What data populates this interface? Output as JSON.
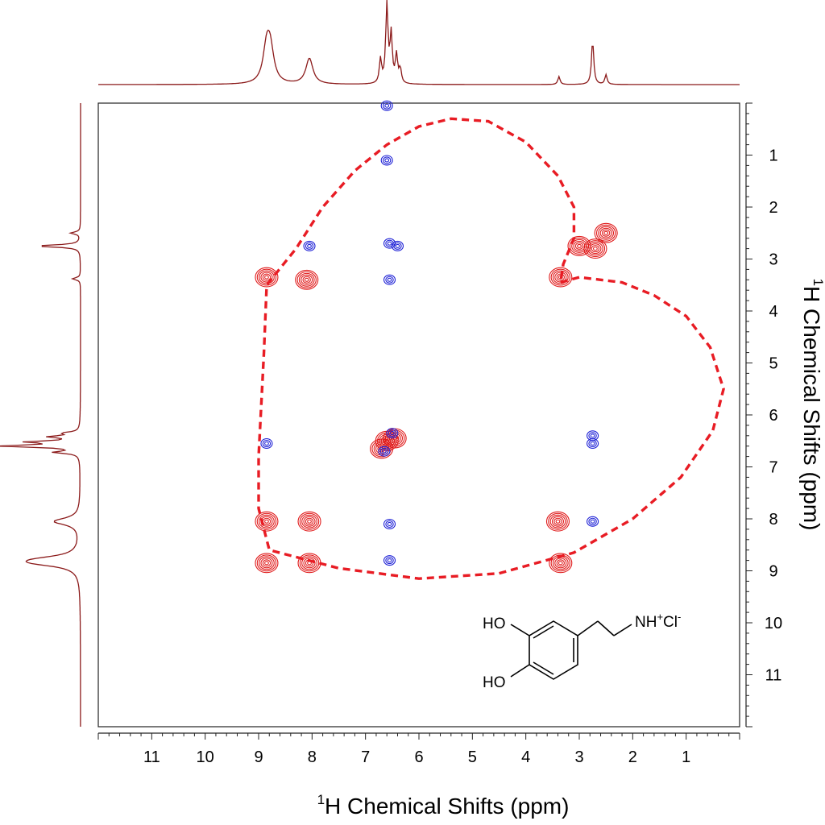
{
  "chart_data": {
    "type": "scatter",
    "x_axis": {
      "label_prefix_superscript": "1",
      "label": "H Chemical Shifts (ppm)",
      "range": [
        12,
        0
      ],
      "tick_labels": [
        "11",
        "10",
        "9",
        "8",
        "7",
        "6",
        "5",
        "4",
        "3",
        "2",
        "1"
      ]
    },
    "y_axis": {
      "label_prefix_superscript": "1",
      "label": "H Chemical Shifts (ppm)",
      "range": [
        0,
        12
      ],
      "position": "right",
      "tick_labels": [
        "1",
        "2",
        "3",
        "4",
        "5",
        "6",
        "7",
        "8",
        "9",
        "10",
        "11"
      ]
    },
    "grid": false,
    "colors": {
      "positive": "#e01b1b",
      "negative": "#1f22d6",
      "projection": "#8b1a1a",
      "heart": "#e81c24"
    },
    "series": [
      {
        "name": "",
        "color": "#e01b1b",
        "points": [
          [
            8.85,
            3.35
          ],
          [
            8.85,
            8.05
          ],
          [
            8.85,
            8.85
          ],
          [
            8.05,
            8.05
          ],
          [
            8.05,
            8.85
          ],
          [
            8.1,
            3.4
          ],
          [
            6.6,
            6.5
          ],
          [
            6.45,
            6.45
          ],
          [
            6.7,
            6.65
          ],
          [
            3.35,
            3.35
          ],
          [
            3.35,
            8.85
          ],
          [
            3.4,
            8.05
          ],
          [
            2.7,
            2.8
          ],
          [
            2.5,
            2.5
          ],
          [
            3.0,
            2.75
          ]
        ]
      },
      {
        "name": "",
        "color": "#1f22d6",
        "points": [
          [
            8.05,
            2.75
          ],
          [
            6.55,
            2.7
          ],
          [
            6.4,
            2.75
          ],
          [
            6.55,
            3.4
          ],
          [
            6.6,
            1.1
          ],
          [
            6.6,
            0.05
          ],
          [
            8.85,
            6.55
          ],
          [
            6.5,
            6.35
          ],
          [
            6.65,
            6.7
          ],
          [
            6.55,
            8.1
          ],
          [
            6.55,
            8.8
          ],
          [
            2.75,
            6.55
          ],
          [
            2.75,
            8.05
          ],
          [
            2.75,
            6.4
          ]
        ]
      }
    ],
    "projection_peaks_ppm": [
      8.85,
      8.78,
      8.05,
      6.72,
      6.6,
      6.52,
      6.42,
      6.35,
      3.38,
      2.75,
      2.5
    ],
    "projection_heights": [
      0.42,
      0.38,
      0.32,
      0.3,
      1.0,
      0.6,
      0.35,
      0.18,
      0.1,
      0.55,
      0.12
    ],
    "annotation": {
      "type": "heart-outline",
      "style": "dashed",
      "path_ppm": [
        [
          3.35,
          3.45
        ],
        [
          3.0,
          3.35
        ],
        [
          2.6,
          3.4
        ],
        [
          2.2,
          3.45
        ],
        [
          1.6,
          3.7
        ],
        [
          1.0,
          4.1
        ],
        [
          0.55,
          4.7
        ],
        [
          0.3,
          5.5
        ],
        [
          0.5,
          6.3
        ],
        [
          1.1,
          7.2
        ],
        [
          2.0,
          8.0
        ],
        [
          3.1,
          8.65
        ],
        [
          4.5,
          9.05
        ],
        [
          6.0,
          9.15
        ],
        [
          7.5,
          8.95
        ],
        [
          8.8,
          8.6
        ],
        [
          9.0,
          7.8
        ],
        [
          9.0,
          6.8
        ],
        [
          8.95,
          5.8
        ],
        [
          8.9,
          4.8
        ],
        [
          8.85,
          3.5
        ],
        [
          8.3,
          2.8
        ],
        [
          7.8,
          2.0
        ],
        [
          7.2,
          1.3
        ],
        [
          6.6,
          0.8
        ],
        [
          6.0,
          0.45
        ],
        [
          5.4,
          0.3
        ],
        [
          4.7,
          0.35
        ],
        [
          4.0,
          0.75
        ],
        [
          3.4,
          1.4
        ],
        [
          3.1,
          2.0
        ],
        [
          3.1,
          2.6
        ],
        [
          3.3,
          3.1
        ],
        [
          3.35,
          3.45
        ]
      ]
    },
    "structure_labels": {
      "ho_top": "HO",
      "ho_bottom": "HO",
      "amine": "NH",
      "amine_charge": "+",
      "counter_ion": "Cl",
      "counter_charge": "-"
    }
  }
}
